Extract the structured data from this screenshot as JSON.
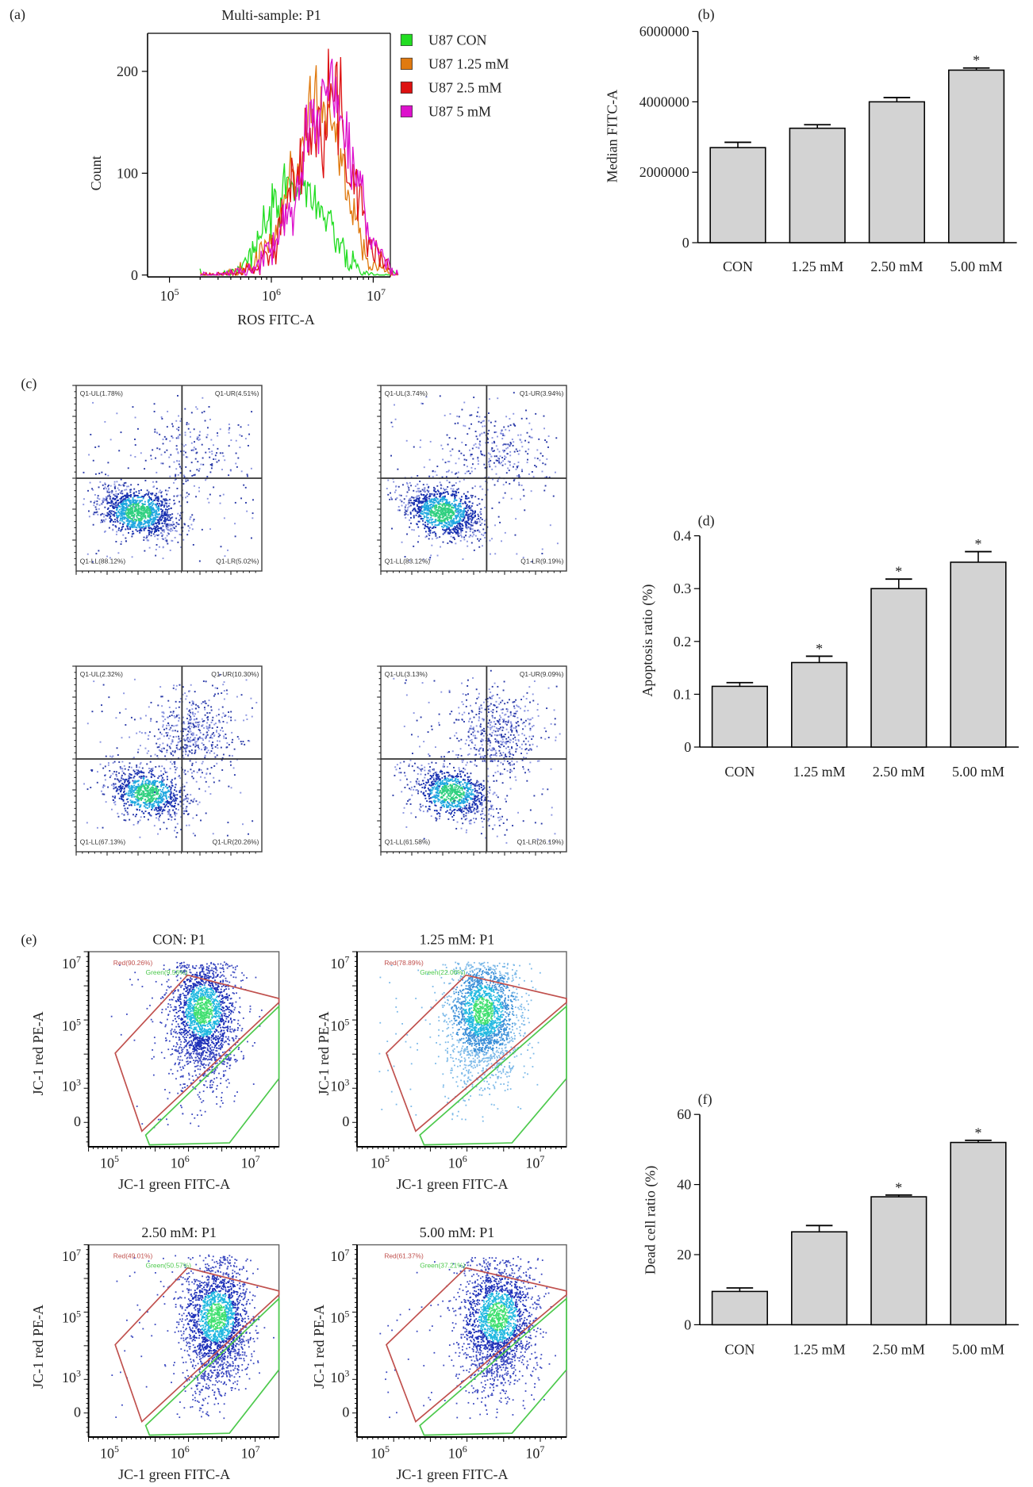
{
  "panels": {
    "a": "(a)",
    "b": "(b)",
    "c": "(c)",
    "d": "(d)",
    "e": "(e)",
    "f": "(f)"
  },
  "chart_data": [
    {
      "id": "a",
      "type": "line",
      "title": "Multi-sample: P1",
      "xlabel": "ROS FITC-A",
      "ylabel": "Count",
      "x_scale": "log",
      "xlim": [
        50000,
        20000000
      ],
      "ylim": [
        0,
        240
      ],
      "xticks": [
        "10^5",
        "10^6",
        "10^7"
      ],
      "yticks": [
        "0",
        "100",
        "200"
      ],
      "legend": "right",
      "x": [
        250000,
        400000,
        630000,
        1000000,
        1600000,
        2500000,
        4000000,
        6300000,
        10000000,
        16000000
      ],
      "series": [
        {
          "name": "U87 CON",
          "color": "#22dd22",
          "values": [
            0,
            3,
            20,
            55,
            95,
            80,
            40,
            8,
            0,
            0
          ]
        },
        {
          "name": "U87 1.25 mM",
          "color": "#e07a10",
          "values": [
            0,
            1,
            8,
            30,
            95,
            170,
            150,
            60,
            10,
            0
          ]
        },
        {
          "name": "U87 2.5 mM",
          "color": "#dd1111",
          "values": [
            0,
            1,
            5,
            25,
            80,
            150,
            180,
            100,
            25,
            2
          ]
        },
        {
          "name": "U87 5 mM",
          "color": "#dd11cc",
          "values": [
            0,
            1,
            6,
            25,
            75,
            150,
            185,
            110,
            30,
            3
          ]
        }
      ]
    },
    {
      "id": "b",
      "type": "bar",
      "ylabel": "Median FITC-A",
      "ylim": [
        0,
        6000000
      ],
      "yticks": [
        "0",
        "2000000",
        "4000000",
        "6000000"
      ],
      "categories": [
        "CON",
        "1.25 mM",
        "2.50 mM",
        "5.00 mM"
      ],
      "values": [
        2700000,
        3250000,
        4000000,
        4900000
      ],
      "errors": [
        150000,
        100000,
        120000,
        60000
      ],
      "significance": [
        "",
        "",
        "",
        "*"
      ]
    },
    {
      "id": "d",
      "type": "bar",
      "ylabel": "Apoptosis ratio (%)",
      "ylim": [
        0,
        0.4
      ],
      "yticks": [
        "0",
        "0.1",
        "0.2",
        "0.3",
        "0.4"
      ],
      "categories": [
        "CON",
        "1.25 mM",
        "2.50 mM",
        "5.00 mM"
      ],
      "values": [
        0.115,
        0.16,
        0.3,
        0.35
      ],
      "errors": [
        0.007,
        0.012,
        0.018,
        0.02
      ],
      "significance": [
        "",
        "*",
        "*",
        "*"
      ]
    },
    {
      "id": "f",
      "type": "bar",
      "ylabel": "Dead cell ratio (%)",
      "ylim": [
        0,
        60
      ],
      "yticks": [
        "0",
        "20",
        "40",
        "60"
      ],
      "categories": [
        "CON",
        "1.25 mM",
        "2.50 mM",
        "5.00 mM"
      ],
      "values": [
        9.5,
        26.5,
        36.5,
        52
      ],
      "errors": [
        1,
        1.8,
        0.5,
        0.6
      ],
      "significance": [
        "",
        "",
        "*",
        "*"
      ]
    },
    {
      "id": "c",
      "type": "scatter",
      "plots": [
        {
          "UL": "Q1-UL(1.78%)",
          "UR": "Q1-UR(4.51%)",
          "LL": "Q1-LL(88.12%)",
          "LR": "Q1-LR(5.02%)"
        },
        {
          "UL": "Q1-UL(3.74%)",
          "UR": "Q1-UR(3.94%)",
          "LL": "Q1-LL(83.12%)",
          "LR": "Q1-LR(9.19%)"
        },
        {
          "UL": "Q1-UL(2.32%)",
          "UR": "Q1-UR(10.30%)",
          "LL": "Q1-LL(67.13%)",
          "LR": "Q1-LR(20.26%)"
        },
        {
          "UL": "Q1-UL(3.13%)",
          "UR": "Q1-UR(9.09%)",
          "LL": "Q1-LL(61.58%)",
          "LR": "Q1-LR(26.19%)"
        }
      ]
    },
    {
      "id": "e",
      "type": "scatter",
      "xlabel": "JC-1 green FITC-A",
      "ylabel": "JC-1 red PE-A",
      "x_scale": "log",
      "xticks": [
        "10^5",
        "10^6",
        "10^7"
      ],
      "yticks": [
        "10^7",
        "10^5",
        "10^3",
        "0"
      ],
      "plots": [
        {
          "title": "CON: P1",
          "red": "Red(90.26%)",
          "green": "Green(9.56%)"
        },
        {
          "title": "1.25 mM: P1",
          "red": "Red(78.89%)",
          "green": "Green(22.06%)"
        },
        {
          "title": "2.50 mM: P1",
          "red": "Red(49.01%)",
          "green": "Green(50.57%)"
        },
        {
          "title": "5.00 mM: P1",
          "red": "Red(61.37%)",
          "green": "Green(37.21%)"
        }
      ],
      "gate_colors": {
        "red": "#c0504d",
        "green": "#4cc94c"
      }
    }
  ]
}
